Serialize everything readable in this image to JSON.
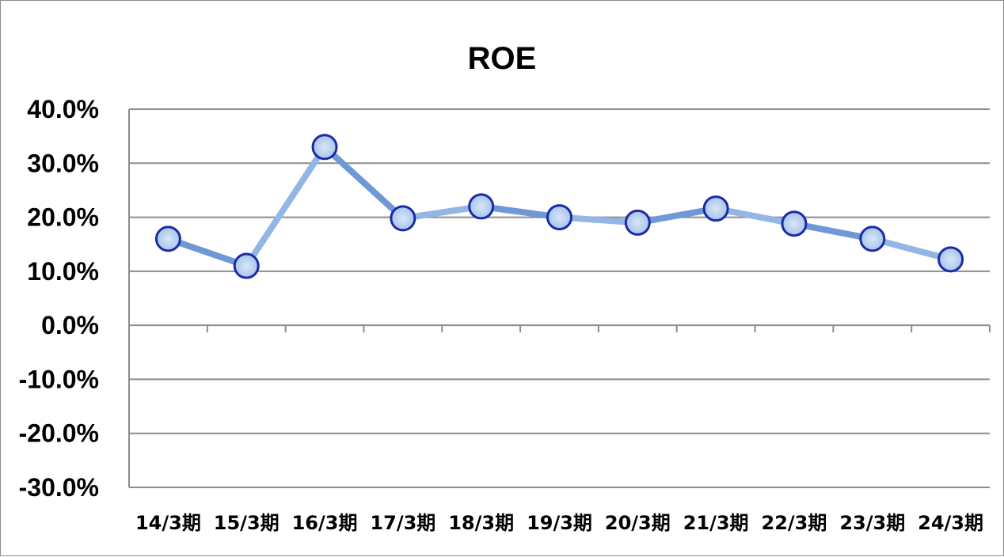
{
  "chart_data": {
    "type": "line",
    "title": "ROE",
    "xlabel": "",
    "ylabel": "",
    "categories": [
      "14/3期",
      "15/3期",
      "16/3期",
      "17/3期",
      "18/3期",
      "19/3期",
      "20/3期",
      "21/3期",
      "22/3期",
      "23/3期",
      "24/3期"
    ],
    "series": [
      {
        "values": [
          16.0,
          11.0,
          33.0,
          19.8,
          22.0,
          20.0,
          19.0,
          21.6,
          18.8,
          16.0,
          12.2
        ]
      }
    ],
    "ylim": [
      -30,
      40
    ],
    "y_ticks": [
      "40.0%",
      "30.0%",
      "20.0%",
      "10.0%",
      "0.0%",
      "-10.0%",
      "-20.0%",
      "-30.0%"
    ],
    "grid": true,
    "legend": "none",
    "colors": {
      "segment_a": "#6f98d6",
      "segment_b": "#93b7e5",
      "marker_fill": "#a8c4ea",
      "marker_stroke": "#1a2aa8",
      "grid": "#8c8c8c",
      "axis": "#8c8c8c"
    }
  }
}
